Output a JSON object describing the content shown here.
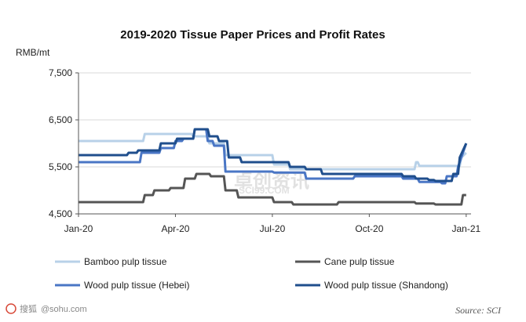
{
  "chart_data": {
    "type": "line",
    "title": "2019-2020 Tissue Paper Prices and Profit Rates",
    "ylabel": "RMB/mt",
    "ylim": [
      4500,
      7500
    ],
    "yticks": [
      "4,500",
      "5,500",
      "6,500",
      "7,500"
    ],
    "ytick_values": [
      4500,
      5500,
      6500,
      7500
    ],
    "xlim": [
      0,
      12.15
    ],
    "xticks": [
      "Jan-20",
      "Apr-20",
      "Jul-20",
      "Oct-20",
      "Jan-21"
    ],
    "xtick_values": [
      0,
      3,
      6,
      9,
      12
    ],
    "source": "Source: SCI",
    "series": [
      {
        "name": "Bamboo pulp tissue",
        "color": "#b8d1e8",
        "x": [
          0,
          2.0,
          2.05,
          3.5,
          3.55,
          4.0,
          4.05,
          4.5,
          4.55,
          6.0,
          6.05,
          6.5,
          6.55,
          10.4,
          10.45,
          10.5,
          10.55,
          11.8,
          11.85,
          12.0
        ],
        "y": [
          6050,
          6050,
          6200,
          6200,
          6150,
          6150,
          6000,
          6000,
          5750,
          5750,
          5550,
          5550,
          5450,
          5450,
          5600,
          5600,
          5520,
          5520,
          5700,
          5800
        ]
      },
      {
        "name": "Cane pulp tissue",
        "color": "#555555",
        "x": [
          0,
          2.0,
          2.05,
          2.3,
          2.35,
          2.8,
          2.85,
          3.25,
          3.3,
          3.6,
          3.65,
          4.05,
          4.1,
          4.5,
          4.55,
          4.9,
          4.95,
          6.0,
          6.05,
          6.6,
          6.65,
          8.0,
          8.05,
          10.4,
          10.45,
          11.0,
          11.05,
          11.85,
          11.9,
          12.0
        ],
        "y": [
          4750,
          4750,
          4900,
          4900,
          5000,
          5000,
          5050,
          5050,
          5250,
          5250,
          5350,
          5350,
          5300,
          5300,
          5000,
          5000,
          4850,
          4850,
          4750,
          4750,
          4700,
          4700,
          4750,
          4750,
          4720,
          4720,
          4700,
          4700,
          4900,
          4900
        ]
      },
      {
        "name": "Wood pulp tissue (Hebei)",
        "color": "#4a76c5",
        "x": [
          0,
          1.9,
          1.95,
          2.5,
          2.55,
          2.95,
          3.0,
          3.2,
          3.25,
          3.55,
          3.6,
          3.95,
          4.0,
          4.15,
          4.2,
          4.5,
          4.55,
          6.0,
          6.05,
          7.0,
          7.05,
          8.5,
          8.55,
          10.0,
          10.05,
          10.5,
          10.55,
          11.2,
          11.25,
          11.35,
          11.4,
          11.7,
          11.75,
          12.0
        ],
        "y": [
          5600,
          5600,
          5800,
          5800,
          5900,
          5900,
          6050,
          6050,
          6100,
          6100,
          6300,
          6300,
          6050,
          6050,
          5950,
          5950,
          5400,
          5400,
          5380,
          5380,
          5250,
          5250,
          5300,
          5300,
          5250,
          5250,
          5180,
          5180,
          5150,
          5150,
          5300,
          5300,
          5500,
          6000
        ]
      },
      {
        "name": "Wood pulp tissue (Shandong)",
        "color": "#1f4e8c",
        "x": [
          0,
          1.5,
          1.55,
          1.8,
          1.85,
          2.5,
          2.55,
          3.0,
          3.05,
          3.55,
          3.6,
          4.0,
          4.05,
          4.3,
          4.35,
          4.6,
          4.65,
          5.0,
          5.05,
          6.5,
          6.55,
          7.0,
          7.05,
          7.5,
          7.55,
          10.0,
          10.05,
          10.4,
          10.45,
          10.8,
          10.85,
          11.0,
          11.05,
          11.55,
          11.6,
          11.75,
          11.8,
          12.0
        ],
        "y": [
          5750,
          5750,
          5800,
          5800,
          5850,
          5850,
          6000,
          6000,
          6100,
          6100,
          6300,
          6300,
          6150,
          6150,
          6050,
          6050,
          5700,
          5700,
          5600,
          5600,
          5500,
          5500,
          5450,
          5450,
          5350,
          5350,
          5300,
          5300,
          5250,
          5250,
          5220,
          5220,
          5200,
          5200,
          5350,
          5350,
          5700,
          6000
        ]
      }
    ]
  },
  "watermark": {
    "cn": "卓创资讯",
    "url": "SCI99.COM"
  },
  "footer": {
    "logo_text": "搜狐",
    "url_text": "sohu.com",
    "prefix": "@"
  }
}
